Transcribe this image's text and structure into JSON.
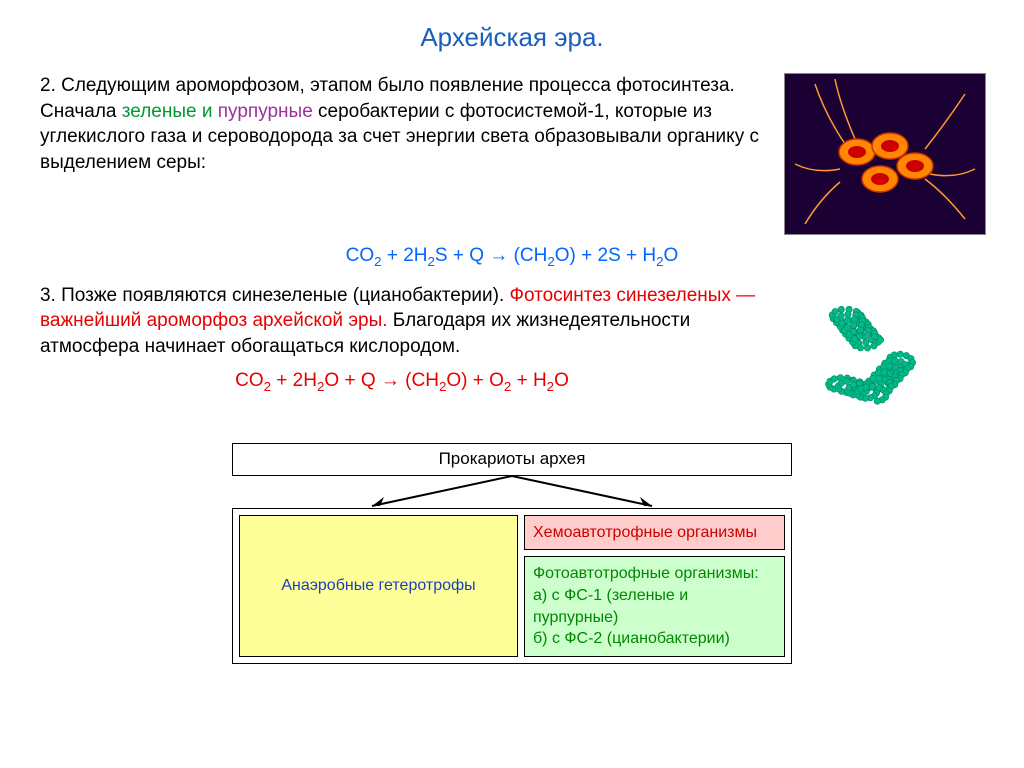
{
  "title": "Архейская эра.",
  "para2_a": "2. Следующим ароморфозом, этапом было появление процесса фотосинтеза. Сначала ",
  "para2_green": "зеленые ",
  "para2_and": "и ",
  "para2_purple": "пурпурные",
  "para2_b": " серобактерии с фотосистемой-1, которые из углекислого газа и сероводорода за счет энергии света образовывали органику с выделением серы:",
  "formula1": "CO₂ + 2H₂S + Q → (CH₂O) + 2S + H₂O",
  "para3_a": "3. Позже появляются синезеленые (цианобактерии). ",
  "para3_red": "Фотосинтез синезеленых — важнейший ароморфоз архейской эры.",
  "para3_b": " Благодаря их жизнедеятельности атмосфера начинает обогащаться кислородом.",
  "formula2": "CO₂ + 2H₂O + Q → (CH₂O) + O₂ + H₂O",
  "diagram": {
    "top": "Прокариоты архея",
    "left": "Анаэробные гетеротрофы",
    "right_top": "Хемоавтотрофные организмы",
    "right_bot_t": "Фотоавтотрофные организмы:",
    "right_bot_a": "а) с ФС-1 (зеленые и пурпурные)",
    "right_bot_b": "б) с ФС-2 (цианобактерии)"
  },
  "colors": {
    "title": "#1a5fbf",
    "green": "#009933",
    "purple": "#993399",
    "red": "#e60000",
    "formula": "#0066ff",
    "cell_left_bg": "#ffff99",
    "cell_left_fg": "#1a3fbf",
    "cell_rt_bg": "#ffcccc",
    "cell_rt_fg": "#cc0000",
    "cell_rb_bg": "#ccffcc",
    "cell_rb_fg": "#008800",
    "bacteria_bg": "#1a0033",
    "bacteria_cell": "#ff7700",
    "spiral": "#00cc99"
  }
}
